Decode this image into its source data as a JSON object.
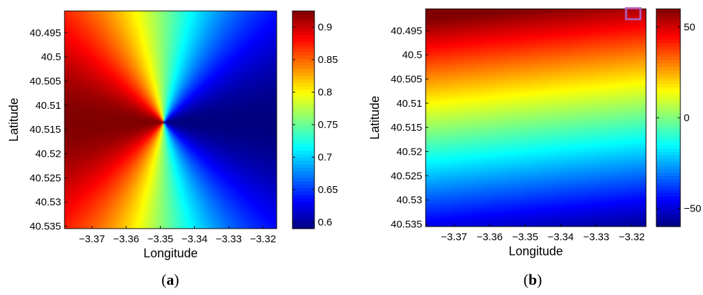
{
  "chart_data": [
    {
      "type": "heatmap",
      "panel_label": "a",
      "xlabel": "Longitude",
      "ylabel": "Latitude",
      "xlim": [
        -3.378,
        -3.316
      ],
      "ylim": [
        40.4905,
        40.5355
      ],
      "y_reversed": true,
      "x_ticks": [
        -3.37,
        -3.36,
        -3.35,
        -3.34,
        -3.33,
        -3.32
      ],
      "x_tick_labels": [
        "−3.37",
        "−3.36",
        "−3.35",
        "−3.34",
        "−3.33",
        "−3.32"
      ],
      "y_ticks": [
        40.495,
        40.5,
        40.505,
        40.51,
        40.515,
        40.52,
        40.525,
        40.53,
        40.535
      ],
      "y_tick_labels": [
        "40.495",
        "40.5",
        "40.505",
        "40.51",
        "40.515",
        "40.52",
        "40.525",
        "40.53",
        "40.535"
      ],
      "field": "angular",
      "center": [
        -3.349,
        40.5135
      ],
      "value_range": [
        0.59,
        0.925
      ],
      "colormap": "jet",
      "colorbar_ticks": [
        0.6,
        0.65,
        0.7,
        0.75,
        0.8,
        0.85,
        0.9
      ],
      "colorbar_tick_labels": [
        "0.6",
        "0.65",
        "0.7",
        "0.75",
        "0.8",
        "0.85",
        "0.9"
      ]
    },
    {
      "type": "heatmap",
      "panel_label": "b",
      "xlabel": "Longitude",
      "ylabel": "Latitude",
      "xlim": [
        -3.378,
        -3.316
      ],
      "ylim": [
        40.4905,
        40.5355
      ],
      "y_reversed": true,
      "x_ticks": [
        -3.37,
        -3.36,
        -3.35,
        -3.34,
        -3.33,
        -3.32
      ],
      "x_tick_labels": [
        "−3.37",
        "−3.36",
        "−3.35",
        "−3.34",
        "−3.33",
        "−3.32"
      ],
      "y_ticks": [
        40.495,
        40.5,
        40.505,
        40.51,
        40.515,
        40.52,
        40.525,
        40.53,
        40.535
      ],
      "y_tick_labels": [
        "40.495",
        "40.5",
        "40.505",
        "40.51",
        "40.515",
        "40.52",
        "40.525",
        "40.53",
        "40.535"
      ],
      "field": "linear-gradient",
      "value_range": [
        -60,
        60
      ],
      "colormap": "jet",
      "colorbar_ticks": [
        50,
        0,
        -50
      ],
      "colorbar_tick_labels": [
        "50",
        "0",
        "−50"
      ],
      "marker": {
        "shape": "square",
        "color": "#b05cb5",
        "x": -3.3195,
        "y": 40.4915
      }
    }
  ],
  "captions": {
    "a": "a",
    "b": "b"
  }
}
